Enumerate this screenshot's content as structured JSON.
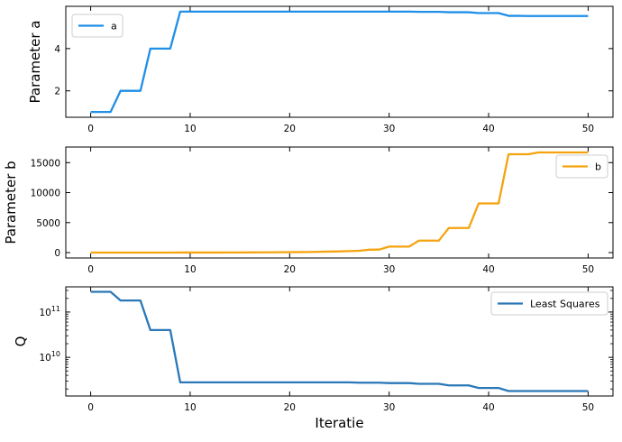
{
  "chart_data": [
    {
      "type": "line",
      "ylabel": "Parameter a",
      "xlabel": "",
      "xlim": [
        -2.5,
        52.5
      ],
      "ylim": [
        0.75,
        6.0
      ],
      "yscale": "linear",
      "xticks": [
        0,
        10,
        20,
        30,
        40,
        50
      ],
      "xtick_labels": [
        "0",
        "10",
        "20",
        "30",
        "40",
        "50"
      ],
      "yticks": [
        2,
        4
      ],
      "ytick_labels": [
        "2",
        "4"
      ],
      "grid": false,
      "legend_position": "top-left",
      "series": [
        {
          "name": "a",
          "color": "#1f8fe8",
          "x": [
            0,
            1,
            2,
            3,
            4,
            5,
            6,
            7,
            8,
            9,
            10,
            11,
            12,
            13,
            14,
            15,
            16,
            17,
            18,
            19,
            20,
            21,
            22,
            23,
            24,
            25,
            26,
            27,
            28,
            29,
            30,
            31,
            32,
            33,
            34,
            35,
            36,
            37,
            38,
            39,
            40,
            41,
            42,
            43,
            44,
            45,
            46,
            47,
            48,
            49,
            50
          ],
          "y": [
            1.0,
            1.0,
            1.0,
            2.0,
            2.0,
            2.0,
            4.0,
            4.0,
            4.0,
            5.75,
            5.75,
            5.75,
            5.75,
            5.75,
            5.75,
            5.75,
            5.75,
            5.75,
            5.75,
            5.75,
            5.75,
            5.75,
            5.75,
            5.75,
            5.75,
            5.75,
            5.75,
            5.75,
            5.75,
            5.75,
            5.75,
            5.75,
            5.75,
            5.74,
            5.74,
            5.74,
            5.72,
            5.72,
            5.72,
            5.68,
            5.68,
            5.68,
            5.55,
            5.55,
            5.54,
            5.54,
            5.54,
            5.54,
            5.54,
            5.54,
            5.54
          ]
        }
      ]
    },
    {
      "type": "line",
      "ylabel": "Parameter b",
      "xlabel": "",
      "xlim": [
        -2.5,
        52.5
      ],
      "ylim": [
        -900,
        17600
      ],
      "yscale": "linear",
      "xticks": [
        0,
        10,
        20,
        30,
        40,
        50
      ],
      "xtick_labels": [
        "0",
        "10",
        "20",
        "30",
        "40",
        "50"
      ],
      "yticks": [
        0,
        5000,
        10000,
        15000
      ],
      "ytick_labels": [
        "0",
        "5000",
        "10000",
        "15000"
      ],
      "grid": false,
      "legend_position": "top-right",
      "series": [
        {
          "name": "b",
          "color": "#f5a30f",
          "x": [
            0,
            1,
            2,
            3,
            4,
            5,
            6,
            7,
            8,
            9,
            10,
            11,
            12,
            13,
            14,
            15,
            16,
            17,
            18,
            19,
            20,
            21,
            22,
            23,
            24,
            25,
            26,
            27,
            28,
            29,
            30,
            31,
            32,
            33,
            34,
            35,
            36,
            37,
            38,
            39,
            40,
            41,
            42,
            43,
            44,
            45,
            46,
            47,
            48,
            49,
            50
          ],
          "y": [
            0,
            0,
            0,
            0,
            0,
            0,
            0,
            0,
            0,
            10,
            10,
            10,
            15,
            15,
            20,
            25,
            30,
            35,
            45,
            55,
            65,
            85,
            100,
            130,
            160,
            200,
            250,
            300,
            480,
            500,
            1000,
            1000,
            1000,
            2000,
            2000,
            2000,
            4100,
            4100,
            4100,
            8200,
            8200,
            8200,
            16400,
            16400,
            16400,
            16700,
            16700,
            16700,
            16700,
            16700,
            16700
          ]
        }
      ]
    },
    {
      "type": "line",
      "ylabel": "Q",
      "xlabel": "Iteratie",
      "xlim": [
        -2.5,
        52.5
      ],
      "ylim": [
        1400000000.0,
        360000000000.0
      ],
      "yscale": "log",
      "xticks": [
        0,
        10,
        20,
        30,
        40,
        50
      ],
      "xtick_labels": [
        "0",
        "10",
        "20",
        "30",
        "40",
        "50"
      ],
      "yticks": [
        10000000000.0,
        100000000000.0
      ],
      "ytick_labels": [
        "10^10",
        "10^11"
      ],
      "grid": false,
      "legend_position": "top-right",
      "series": [
        {
          "name": "Least Squares",
          "color": "#2a78b8",
          "x": [
            0,
            1,
            2,
            3,
            4,
            5,
            6,
            7,
            8,
            9,
            10,
            11,
            12,
            13,
            14,
            15,
            16,
            17,
            18,
            19,
            20,
            21,
            22,
            23,
            24,
            25,
            26,
            27,
            28,
            29,
            30,
            31,
            32,
            33,
            34,
            35,
            36,
            37,
            38,
            39,
            40,
            41,
            42,
            43,
            44,
            45,
            46,
            47,
            48,
            49,
            50
          ],
          "y": [
            280000000000.0,
            280000000000.0,
            280000000000.0,
            180000000000.0,
            180000000000.0,
            180000000000.0,
            40000000000.0,
            40000000000.0,
            40000000000.0,
            2800000000.0,
            2800000000.0,
            2800000000.0,
            2800000000.0,
            2800000000.0,
            2800000000.0,
            2800000000.0,
            2800000000.0,
            2800000000.0,
            2800000000.0,
            2800000000.0,
            2800000000.0,
            2800000000.0,
            2800000000.0,
            2800000000.0,
            2800000000.0,
            2800000000.0,
            2800000000.0,
            2750000000.0,
            2750000000.0,
            2750000000.0,
            2700000000.0,
            2700000000.0,
            2700000000.0,
            2600000000.0,
            2600000000.0,
            2600000000.0,
            2400000000.0,
            2400000000.0,
            2400000000.0,
            2100000000.0,
            2100000000.0,
            2100000000.0,
            1800000000.0,
            1800000000.0,
            1800000000.0,
            1800000000.0,
            1800000000.0,
            1800000000.0,
            1800000000.0,
            1800000000.0,
            1800000000.0
          ]
        }
      ]
    }
  ]
}
